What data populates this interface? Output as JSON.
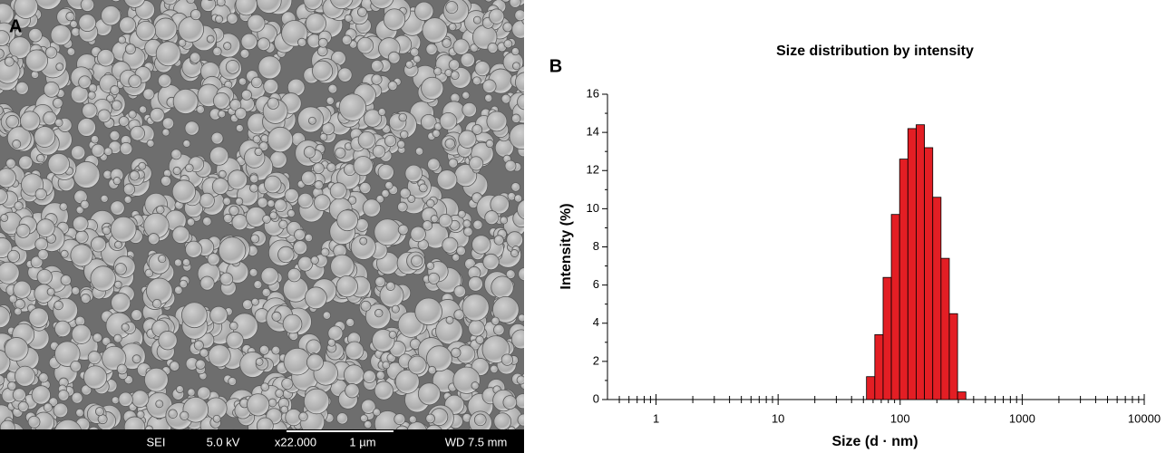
{
  "image_panel": {
    "panel_label": "A",
    "info": [
      "SEI",
      "5.0 kV",
      "x22.000",
      "1 µm",
      "WD 7.5 mm"
    ]
  },
  "chart_data": {
    "type": "histogram",
    "panel_label": "B",
    "title": "Size distribution by intensity",
    "x_label": "Size (d · nm)",
    "y_label": "Intensity (%)",
    "bins": [
      53,
      62,
      72.5,
      84.7,
      99,
      115.7,
      135.3,
      158.2,
      185,
      216.2,
      252.8,
      295.5,
      345.5
    ],
    "values": [
      1.2,
      3.4,
      6.4,
      9.7,
      12.6,
      14.2,
      14.4,
      13.2,
      10.6,
      7.4,
      4.5,
      0.4
    ],
    "color": "#e31e24",
    "x_log": true,
    "xlim": [
      0.4,
      10000
    ],
    "xticks": [
      1,
      10,
      100,
      1000,
      10000
    ],
    "xminorticks": [
      0.5,
      0.6,
      0.7,
      0.8,
      0.9,
      2,
      3,
      4,
      5,
      6,
      7,
      8,
      9,
      20,
      30,
      40,
      50,
      60,
      70,
      80,
      90,
      200,
      300,
      400,
      500,
      600,
      700,
      800,
      900,
      2000,
      3000,
      4000,
      5000,
      6000,
      7000,
      8000,
      9000
    ],
    "ylim": [
      0,
      16
    ],
    "yticks": [
      0,
      2,
      4,
      6,
      8,
      10,
      12,
      14,
      16
    ],
    "yminorticks": [
      1,
      3,
      5,
      7,
      9,
      11,
      13,
      15
    ]
  }
}
